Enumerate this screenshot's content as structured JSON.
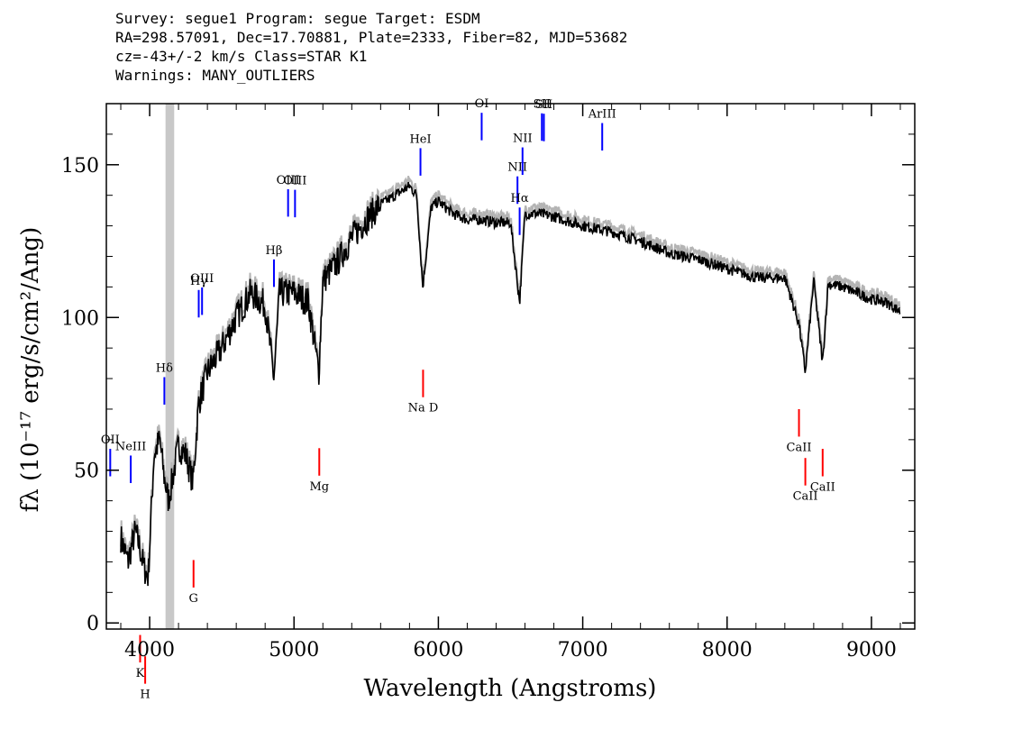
{
  "header": {
    "line1": "Survey: segue1 Program: segue Target: ESDM",
    "line2": "RA=298.57091, Dec=17.70881, Plate=2333, Fiber=82, MJD=53682",
    "line3": "cz=-43+/-2 km/s Class=STAR K1",
    "line4": "Warnings: MANY_OUTLIERS"
  },
  "chart_data": {
    "type": "line",
    "xlabel": "Wavelength (Angstroms)",
    "ylabel": "fλ (10⁻¹⁷ erg/s/cm²/Ang)",
    "xlim": [
      3700,
      9300
    ],
    "ylim": [
      -2,
      170
    ],
    "xticks": [
      "4000",
      "5000",
      "6000",
      "7000",
      "8000",
      "9000"
    ],
    "yticks": [
      "0",
      "50",
      "100",
      "150"
    ],
    "masked_region": [
      4110,
      4170
    ],
    "spectrum": {
      "x": [
        3800,
        3850,
        3900,
        3930,
        3960,
        3990,
        4030,
        4070,
        4100,
        4130,
        4200,
        4250,
        4300,
        4340,
        4400,
        4450,
        4500,
        4600,
        4700,
        4800,
        4861,
        4900,
        5000,
        5100,
        5172,
        5200,
        5300,
        5400,
        5500,
        5600,
        5700,
        5800,
        5850,
        5892,
        5950,
        6000,
        6100,
        6200,
        6300,
        6400,
        6500,
        6563,
        6600,
        6700,
        6800,
        7000,
        7200,
        7400,
        7600,
        7800,
        8000,
        8200,
        8400,
        8498,
        8542,
        8600,
        8662,
        8700,
        8800,
        9000,
        9100,
        9200
      ],
      "y": [
        28,
        20,
        30,
        25,
        18,
        15,
        55,
        60,
        48,
        40,
        58,
        55,
        46,
        72,
        82,
        86,
        90,
        100,
        108,
        104,
        80,
        108,
        108,
        105,
        82,
        112,
        118,
        126,
        132,
        137,
        140,
        143,
        140,
        110,
        136,
        138,
        134,
        132,
        132,
        131,
        131,
        105,
        134,
        134,
        133,
        130,
        128,
        125,
        121,
        119,
        116,
        113,
        113,
        98,
        82,
        112,
        85,
        111,
        110,
        106,
        105,
        102
      ]
    },
    "emission_lines": [
      {
        "label": "OII",
        "x": 3727
      },
      {
        "label": "NeIII",
        "x": 3869
      },
      {
        "label": "Hδ",
        "x": 4102
      },
      {
        "label": "Hγ",
        "x": 4340
      },
      {
        "label": "OIII",
        "x": 4363
      },
      {
        "label": "Hβ",
        "x": 4861
      },
      {
        "label": "OIII",
        "x": 4959
      },
      {
        "label": "OIII",
        "x": 5007
      },
      {
        "label": "HeI",
        "x": 5876
      },
      {
        "label": "OI",
        "x": 6300
      },
      {
        "label": "NII",
        "x": 6548
      },
      {
        "label": "Hα",
        "x": 6563
      },
      {
        "label": "NII",
        "x": 6583
      },
      {
        "label": "SII",
        "x": 6717
      },
      {
        "label": "SII",
        "x": 6731
      },
      {
        "label": "ArIII",
        "x": 7135
      }
    ],
    "absorption_lines": [
      {
        "label": "K",
        "x": 3934
      },
      {
        "label": "H",
        "x": 3969
      },
      {
        "label": "G",
        "x": 4304
      },
      {
        "label": "Mg",
        "x": 5175
      },
      {
        "label": "Na D",
        "x": 5894
      },
      {
        "label": "CaII",
        "x": 8498
      },
      {
        "label": "CaII",
        "x": 8542
      },
      {
        "label": "CaII",
        "x": 8662
      }
    ],
    "colors": {
      "spectrum": "#000000",
      "emission": "#0000ff",
      "absorption": "#ff0000",
      "mask": "#c8c8c8",
      "error": "#b4b4b4"
    }
  }
}
